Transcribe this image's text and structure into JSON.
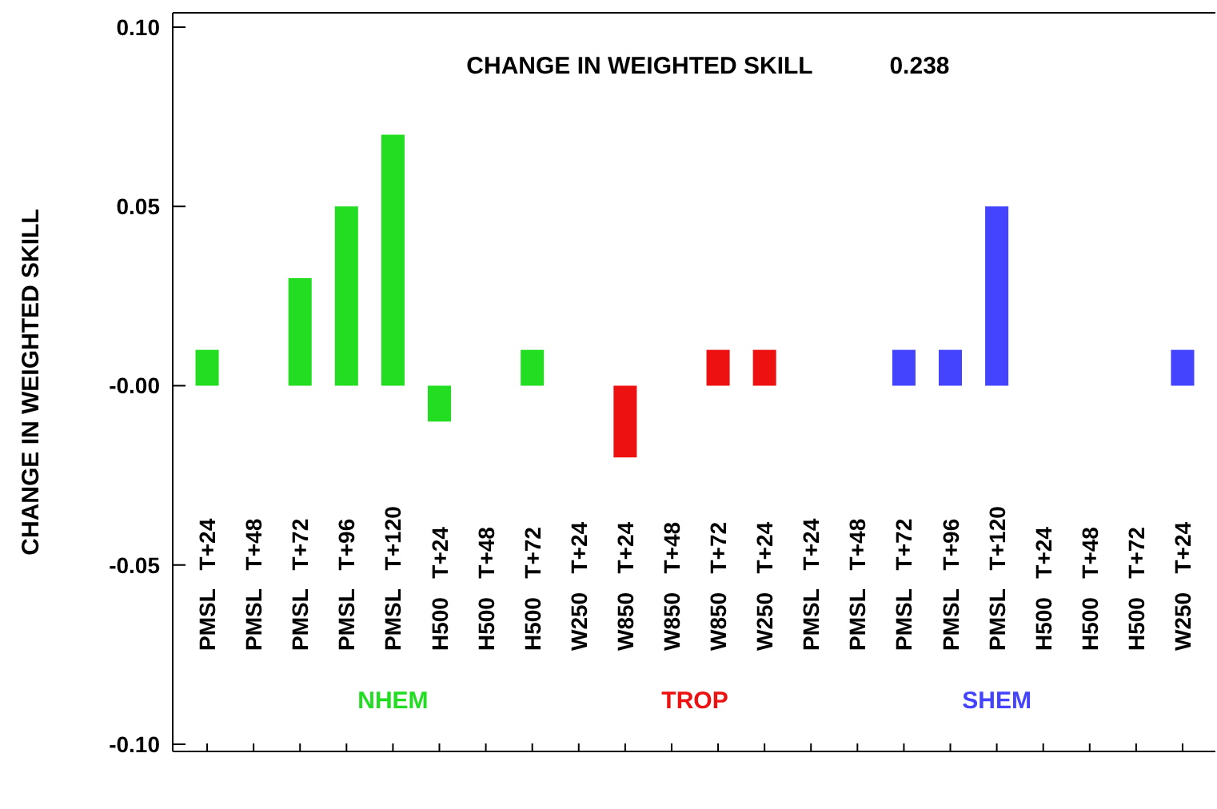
{
  "chart_data": {
    "type": "bar",
    "title": "CHANGE IN WEIGHTED SKILL",
    "ylabel": "CHANGE IN WEIGHTED SKILL",
    "annotations": [
      "0.238"
    ],
    "categories": [
      "PMSL T+24",
      "PMSL T+48",
      "PMSL T+72",
      "PMSL T+96",
      "PMSL T+120",
      "H500 T+24",
      "H500 T+48",
      "H500 T+72",
      "W250 T+24",
      "W850 T+24",
      "W850 T+48",
      "W850 T+72",
      "W250 T+24",
      "PMSL T+24",
      "PMSL T+48",
      "PMSL T+72",
      "PMSL T+96",
      "PMSL T+120",
      "H500 T+24",
      "H500 T+48",
      "H500 T+72",
      "W250 T+24"
    ],
    "series": [
      {
        "name": "NHEM",
        "color": "#22dd22",
        "values": [
          0.01,
          0,
          0.03,
          0.05,
          0.07,
          -0.01,
          0,
          0.01,
          0,
          null,
          null,
          null,
          null,
          null,
          null,
          null,
          null,
          null,
          null,
          null,
          null,
          null
        ]
      },
      {
        "name": "TROP",
        "color": "#ee1111",
        "values": [
          null,
          null,
          null,
          null,
          null,
          null,
          null,
          null,
          null,
          -0.02,
          0,
          0.01,
          0.01,
          null,
          null,
          null,
          null,
          null,
          null,
          null,
          null,
          null
        ]
      },
      {
        "name": "SHEM",
        "color": "#4444ff",
        "values": [
          null,
          null,
          null,
          null,
          null,
          null,
          null,
          null,
          null,
          null,
          null,
          null,
          null,
          0,
          0,
          0.01,
          0.01,
          0.05,
          0,
          0,
          0,
          0.01
        ]
      }
    ],
    "ylim": [
      -0.102,
      0.104
    ],
    "yticks": [
      {
        "value": -0.1,
        "label": "-0.10"
      },
      {
        "value": -0.05,
        "label": "-0.05"
      },
      {
        "value": 0,
        "label": "-0.00"
      },
      {
        "value": 0.05,
        "label": "0.05"
      },
      {
        "value": 0.1,
        "label": "0.10"
      }
    ],
    "legend": "bottom",
    "grid": false
  }
}
